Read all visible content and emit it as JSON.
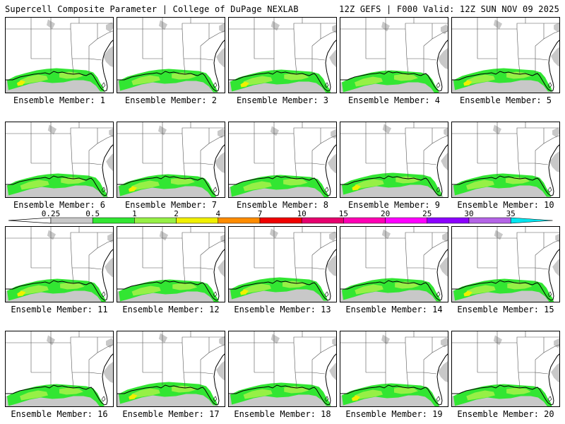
{
  "header": {
    "left": "Supercell Composite Parameter | College of DuPage NEXLAB",
    "right": "12Z GEFS | F000 Valid: 12Z SUN NOV 09 2025"
  },
  "members": [
    {
      "label": "Ensemble Member: 1"
    },
    {
      "label": "Ensemble Member: 2"
    },
    {
      "label": "Ensemble Member: 3"
    },
    {
      "label": "Ensemble Member: 4"
    },
    {
      "label": "Ensemble Member: 5"
    },
    {
      "label": "Ensemble Member: 6"
    },
    {
      "label": "Ensemble Member: 7"
    },
    {
      "label": "Ensemble Member: 8"
    },
    {
      "label": "Ensemble Member: 9"
    },
    {
      "label": "Ensemble Member: 10"
    },
    {
      "label": "Ensemble Member: 11"
    },
    {
      "label": "Ensemble Member: 12"
    },
    {
      "label": "Ensemble Member: 13"
    },
    {
      "label": "Ensemble Member: 14"
    },
    {
      "label": "Ensemble Member: 15"
    },
    {
      "label": "Ensemble Member: 16"
    },
    {
      "label": "Ensemble Member: 17"
    },
    {
      "label": "Ensemble Member: 18"
    },
    {
      "label": "Ensemble Member: 19"
    },
    {
      "label": "Ensemble Member: 20"
    }
  ],
  "colorbar": {
    "ticks": [
      "0.25",
      "0.5",
      "1",
      "2",
      "4",
      "7",
      "10",
      "15",
      "20",
      "25",
      "30",
      "35"
    ],
    "colors": [
      "#c8c8c8",
      "#32e632",
      "#96f046",
      "#f0f000",
      "#ff8c00",
      "#f00000",
      "#e6006e",
      "#ff00b4",
      "#ff00ff",
      "#8c00ff",
      "#b464e6",
      "#00e6f0"
    ]
  },
  "map_colors": {
    "land_fill": "#ffffff",
    "gray_shade": "#c8c8c8",
    "green_shade": "#32e632",
    "lime_shade": "#96f046",
    "yellow_shade": "#f0f000",
    "borders": "#000000"
  }
}
